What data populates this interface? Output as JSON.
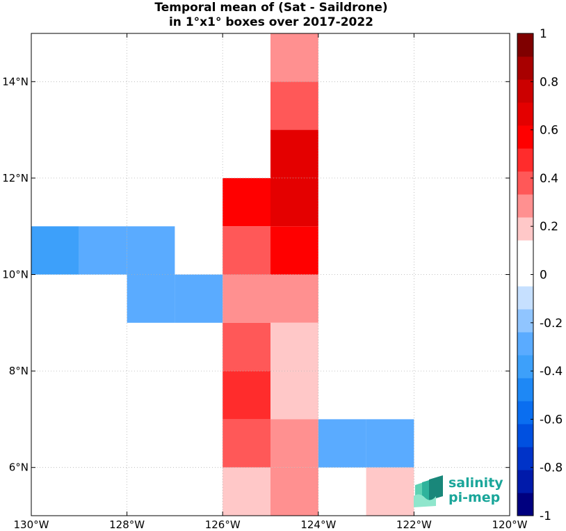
{
  "chart_data": {
    "type": "heatmap",
    "title": "Temporal mean of (Sat - Saildrone)",
    "subtitle": "in 1°x1° boxes over 2017-2022",
    "xlim": [
      -130,
      -120
    ],
    "ylim": [
      5,
      15
    ],
    "x_ticks": [
      -130,
      -128,
      -126,
      -124,
      -122,
      -120
    ],
    "x_tick_labels": [
      "130°W",
      "128°W",
      "126°W",
      "124°W",
      "122°W",
      "120°W"
    ],
    "y_ticks": [
      6,
      8,
      10,
      12,
      14
    ],
    "y_tick_labels": [
      "6°N",
      "8°N",
      "10°N",
      "12°N",
      "14°N"
    ],
    "grid": true,
    "colorbar": {
      "range": [
        -1,
        1
      ],
      "ticks": [
        1,
        0.8,
        0.6,
        0.4,
        0.2,
        0,
        -0.2,
        -0.4,
        -0.6,
        -0.8,
        -1
      ],
      "tick_labels": [
        "1",
        "0.8",
        "0.6",
        "0.4",
        "0.2",
        "0",
        "-0.2",
        "-0.4",
        "-0.6",
        "-0.8",
        "-1"
      ],
      "colors": [
        "#00007f",
        "#001aaa",
        "#0033c8",
        "#0050e0",
        "#0a6ef0",
        "#1e88f5",
        "#3da0fa",
        "#5aabff",
        "#90c5ff",
        "#c6e0ff",
        "#ffffff",
        "#ffffff",
        "#ffc8c8",
        "#ff9090",
        "#ff5858",
        "#ff2c2c",
        "#ff0000",
        "#e40000",
        "#cc0000",
        "#a80000",
        "#7f0000"
      ]
    },
    "cells": [
      {
        "lon": -125,
        "lat": 14,
        "value": 0.25
      },
      {
        "lon": -125,
        "lat": 13,
        "value": 0.35
      },
      {
        "lon": -125,
        "lat": 12,
        "value": 0.65
      },
      {
        "lon": -125,
        "lat": 11,
        "value": 0.65
      },
      {
        "lon": -125,
        "lat": 10,
        "value": 0.55
      },
      {
        "lon": -125,
        "lat": 9,
        "value": 0.25
      },
      {
        "lon": -125,
        "lat": 8,
        "value": 0.15
      },
      {
        "lon": -125,
        "lat": 7,
        "value": 0.15
      },
      {
        "lon": -125,
        "lat": 6,
        "value": 0.25
      },
      {
        "lon": -125,
        "lat": 5,
        "value": 0.25
      },
      {
        "lon": -126,
        "lat": 11,
        "value": 0.55
      },
      {
        "lon": -126,
        "lat": 10,
        "value": 0.35
      },
      {
        "lon": -126,
        "lat": 9,
        "value": 0.25
      },
      {
        "lon": -126,
        "lat": 8,
        "value": 0.35
      },
      {
        "lon": -126,
        "lat": 7,
        "value": 0.45
      },
      {
        "lon": -126,
        "lat": 6,
        "value": 0.35
      },
      {
        "lon": -126,
        "lat": 5,
        "value": 0.15
      },
      {
        "lon": -130,
        "lat": 10,
        "value": -0.35
      },
      {
        "lon": -129,
        "lat": 10,
        "value": -0.25
      },
      {
        "lon": -128,
        "lat": 10,
        "value": -0.25
      },
      {
        "lon": -128,
        "lat": 9,
        "value": -0.25
      },
      {
        "lon": -127,
        "lat": 9,
        "value": -0.25
      },
      {
        "lon": -124,
        "lat": 6,
        "value": -0.25
      },
      {
        "lon": -123,
        "lat": 6,
        "value": -0.25
      },
      {
        "lon": -123,
        "lat": 5,
        "value": 0.15
      }
    ]
  },
  "logo": {
    "line1": "salinity",
    "line2": "pi-mep"
  }
}
